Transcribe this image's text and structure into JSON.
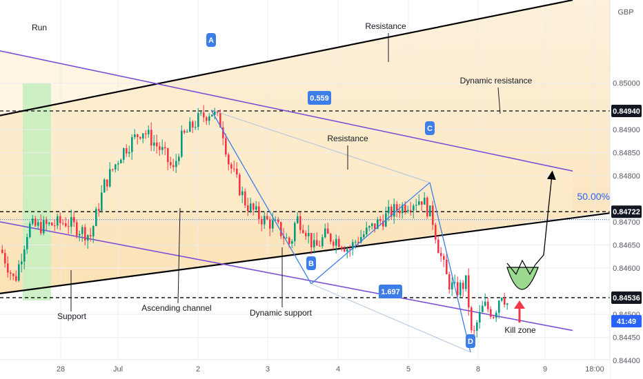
{
  "chart_data": {
    "type": "candlestick",
    "currency": "GBP",
    "price_range": [
      0.8436,
      0.8518
    ],
    "date_ticks": [
      "28",
      "Jul",
      "2",
      "3",
      "4",
      "5",
      "8",
      "9",
      "18:00"
    ],
    "price_ticks": [
      "0.85000",
      "0.84900",
      "0.84850",
      "0.84800",
      "0.84700",
      "0.84650",
      "0.84600",
      "0.84500",
      "0.84450",
      "0.84400"
    ],
    "marked_levels": [
      {
        "value": "0.84940",
        "price": 0.8494
      },
      {
        "value": "0.84722",
        "price": 0.84722
      },
      {
        "value": "0.84536",
        "price": 0.84536
      }
    ],
    "countdown": "41:49",
    "current_price": 0.84485,
    "last_price_line": 0.84705,
    "fib_label": "50.00%",
    "pattern_points": [
      {
        "label": "A",
        "price": 0.84942
      },
      {
        "label": "B",
        "price": 0.84566
      },
      {
        "label": "C",
        "price": 0.84785
      },
      {
        "label": "D",
        "price": 0.84418
      }
    ],
    "ratios": [
      "0.559",
      "1.697"
    ],
    "annotations": {
      "run": "Run",
      "resistance_top": "Resistance",
      "dynamic_resistance": "Dynamic resistance",
      "resistance_mid": "Resistance",
      "support": "Support",
      "ascending_channel": "Ascending channel",
      "dynamic_support": "Dynamic support",
      "kill_zone": "Kill zone"
    },
    "colors": {
      "up": "#089981",
      "down": "#f23645",
      "channel": "#000000",
      "dynamic": "#7b4fd6",
      "pattern": "#3d7de8",
      "zone_fill": "#fbe3b8",
      "run_fill": "#c8eec0",
      "kill_fill": "#9ad98f"
    }
  }
}
